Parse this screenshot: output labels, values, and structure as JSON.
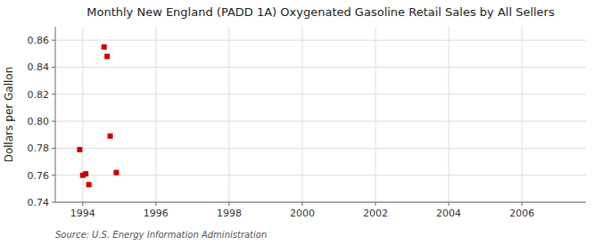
{
  "chart_data": {
    "type": "scatter",
    "title": "Monthly New England (PADD 1A) Oxygenated Gasoline Retail Sales by All Sellers",
    "ylabel": "Dollars per Gallon",
    "source": "Source: U.S. Energy Information Administration",
    "x": [
      1993.917,
      1994.0,
      1994.083,
      1994.167,
      1994.583,
      1994.667,
      1994.75,
      1994.917
    ],
    "values": [
      0.779,
      0.76,
      0.761,
      0.753,
      0.855,
      0.848,
      0.789,
      0.762
    ],
    "color": "#cc0000",
    "marker": "square",
    "xlim": [
      1993.25,
      2007.75
    ],
    "ylim": [
      0.74,
      0.87
    ],
    "xticks": [
      1994,
      1996,
      1998,
      2000,
      2002,
      2004,
      2006
    ],
    "yticks": [
      0.74,
      0.76,
      0.78,
      {
        "value": 0.8,
        "label": "0.80"
      },
      0.82,
      0.84,
      0.86
    ],
    "grid": true
  }
}
